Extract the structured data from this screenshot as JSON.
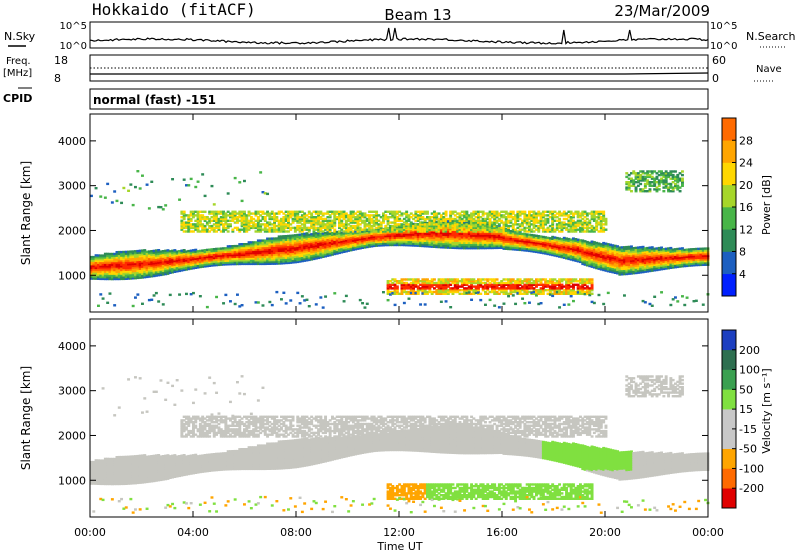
{
  "header": {
    "station": "Hokkaido (fitACF)",
    "beam": "Beam 13",
    "date": "23/Mar/2009"
  },
  "strips": {
    "nsky_label": "N.Sky",
    "nsearch_label": "N.Search",
    "nsky_ticks": [
      "10^5",
      "10^0"
    ],
    "nsearch_ticks": [
      "10^5",
      "10^0"
    ],
    "freq_label_1": "Freq.",
    "freq_label_2": "[MHz]",
    "freq_ticks": [
      "18",
      "8"
    ],
    "nave_label": "Nave",
    "nave_ticks": [
      "60",
      "0"
    ],
    "cpid_label": "CPID",
    "cpid_value": "normal (fast) -151"
  },
  "colors": {
    "power": [
      "#0020ff",
      "#1c5fc0",
      "#2e8b57",
      "#48b548",
      "#a6d62a",
      "#ffd700",
      "#ffa500",
      "#ff6a00",
      "#ff2a00",
      "#e00000"
    ],
    "velocity": [
      "#e00000",
      "#ff6a00",
      "#ffa500",
      "#c8c8c8",
      "#c8c8c8",
      "#80e040",
      "#3aa050",
      "#2e6f50",
      "#1c3fc0"
    ],
    "gray": "#c6c6c0"
  },
  "chart_data": [
    {
      "type": "heatmap",
      "name": "power",
      "xlabel": "Time UT",
      "ylabel": "Slant Range [km]",
      "xlim": [
        0,
        24
      ],
      "ylim": [
        180,
        4600
      ],
      "yticks": [
        "1000",
        "2000",
        "3000",
        "4000"
      ],
      "colorbar": {
        "label": "Power [dB]",
        "ticks": [
          "4",
          "8",
          "12",
          "16",
          "20",
          "24",
          "28"
        ],
        "range": [
          0,
          30
        ]
      }
    },
    {
      "type": "heatmap",
      "name": "velocity",
      "xlabel": "Time UT",
      "ylabel": "Slant Range [km]",
      "xlim": [
        0,
        24
      ],
      "ylim": [
        180,
        4600
      ],
      "yticks": [
        "1000",
        "2000",
        "3000",
        "4000"
      ],
      "xticks": [
        "00:00",
        "04:00",
        "08:00",
        "12:00",
        "16:00",
        "20:00",
        "00:00"
      ],
      "colorbar": {
        "label": "Velocity [m s⁻¹]",
        "ticks": [
          "200",
          "100",
          "50",
          "15",
          "-15",
          "-50",
          "-100",
          "-200"
        ],
        "range": [
          -250,
          250
        ]
      }
    }
  ]
}
